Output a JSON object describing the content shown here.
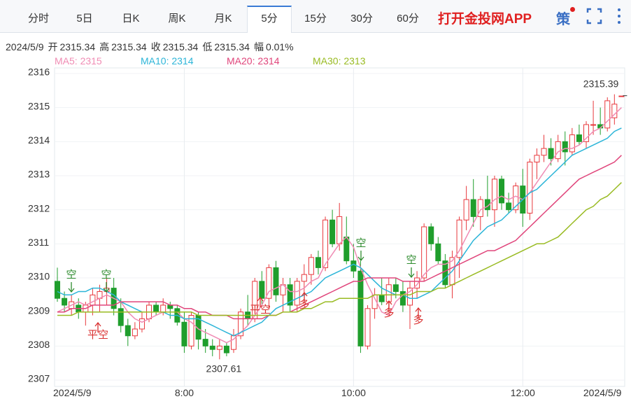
{
  "tabs": {
    "items": [
      "分时",
      "5日",
      "日K",
      "周K",
      "月K",
      "5分",
      "15分",
      "30分",
      "60分"
    ],
    "active": 5,
    "promo": "打开金投网APP",
    "strategy": "策"
  },
  "info": {
    "date": "2024/5/9",
    "items": [
      {
        "label": "开",
        "value": 2315.34
      },
      {
        "label": "高",
        "value": 2315.34
      },
      {
        "label": "收",
        "value": 2315.34
      },
      {
        "label": "低",
        "value": 2315.34
      },
      {
        "label": "幅",
        "value": 0.01,
        "value_label": "0.01%"
      }
    ]
  },
  "chart_data": {
    "type": "candlestick",
    "categories": [
      "2024/5/9",
      null,
      null,
      null,
      null,
      null,
      null,
      null,
      null,
      null,
      null,
      null,
      null,
      null,
      null,
      null,
      null,
      null,
      "8:00",
      null,
      null,
      null,
      null,
      null,
      null,
      null,
      null,
      null,
      null,
      null,
      null,
      null,
      null,
      null,
      null,
      null,
      null,
      null,
      null,
      null,
      null,
      null,
      "10:00",
      null,
      null,
      null,
      null,
      null,
      null,
      null,
      null,
      null,
      null,
      null,
      null,
      null,
      null,
      null,
      null,
      null,
      null,
      null,
      null,
      null,
      null,
      null,
      "12:00",
      null,
      null,
      null,
      null,
      null,
      null,
      null,
      null,
      null,
      null,
      null,
      null,
      null,
      "2024/5/9"
    ],
    "open": [
      2309.9,
      2309.4,
      2309.1,
      2309.2,
      2309.0,
      2309.2,
      2309.4,
      2309.6,
      2309.7,
      2309.1,
      2308.6,
      2308.3,
      2308.5,
      2308.8,
      2309.2,
      2309.0,
      2309.2,
      2309.1,
      2308.7,
      2308.0,
      2308.9,
      2308.2,
      2308.0,
      2307.9,
      2308.0,
      2307.9,
      2308.3,
      2309.0,
      2308.8,
      2309.9,
      2309.4,
      2310.3,
      2309.5,
      2309.8,
      2309.2,
      2309.9,
      2310.1,
      2310.6,
      2310.3,
      2311.7,
      2311.0,
      2311.2,
      2310.5,
      2310.2,
      2308.0,
      2309.1,
      2309.5,
      2309.3,
      2309.8,
      2309.6,
      2309.2,
      2309.7,
      2310.0,
      2311.5,
      2311.0,
      2310.5,
      2309.8,
      2310.6,
      2311.7,
      2312.3,
      2311.8,
      2312.3,
      2312.0,
      2312.9,
      2312.2,
      2312.0,
      2312.7,
      2311.9,
      2313.4,
      2313.6,
      2313.8,
      2313.5,
      2314.0,
      2313.7,
      2314.2,
      2314.0,
      2314.5,
      2314.5,
      2314.4,
      2314.7,
      2315.34
    ],
    "high": [
      2310.3,
      2309.6,
      2309.5,
      2309.4,
      2309.3,
      2309.7,
      2309.8,
      2310.0,
      2310.0,
      2309.4,
      2308.8,
      2308.7,
      2309.0,
      2309.3,
      2309.3,
      2309.4,
      2309.3,
      2309.2,
      2309.0,
      2309.0,
      2309.0,
      2308.5,
      2308.2,
      2308.2,
      2308.1,
      2308.5,
      2309.1,
      2309.5,
      2310.0,
      2310.2,
      2310.4,
      2310.5,
      2310.0,
      2310.0,
      2310.0,
      2310.4,
      2310.7,
      2310.8,
      2311.8,
      2312.0,
      2312.2,
      2311.8,
      2311.0,
      2310.5,
      2309.2,
      2309.7,
      2310.0,
      2310.0,
      2310.0,
      2309.9,
      2309.9,
      2310.2,
      2311.6,
      2311.6,
      2311.2,
      2310.7,
      2310.8,
      2311.8,
      2312.7,
      2312.9,
      2312.4,
      2313.0,
      2313.0,
      2313.0,
      2312.5,
      2312.8,
      2313.2,
      2313.5,
      2313.8,
      2314.2,
      2314.1,
      2314.2,
      2314.3,
      2314.4,
      2314.5,
      2314.6,
      2315.2,
      2315.0,
      2315.3,
      2315.39,
      2315.34
    ],
    "low": [
      2309.3,
      2309.0,
      2308.9,
      2308.8,
      2308.6,
      2308.9,
      2309.0,
      2309.2,
      2308.9,
      2308.4,
      2308.0,
      2308.2,
      2308.4,
      2308.7,
      2308.9,
      2308.9,
      2308.8,
      2308.6,
      2307.8,
      2307.9,
      2307.9,
      2307.8,
      2307.7,
      2307.61,
      2307.7,
      2307.8,
      2308.2,
      2308.6,
      2308.7,
      2309.2,
      2309.1,
      2309.3,
      2309.0,
      2309.0,
      2309.0,
      2309.5,
      2309.8,
      2310.1,
      2310.2,
      2310.9,
      2310.8,
      2310.4,
      2310.0,
      2307.8,
      2307.9,
      2308.8,
      2309.2,
      2309.0,
      2309.4,
      2309.0,
      2308.5,
      2309.4,
      2309.9,
      2310.8,
      2310.4,
      2309.7,
      2309.4,
      2310.0,
      2311.4,
      2311.5,
      2311.4,
      2311.8,
      2311.5,
      2312.0,
      2311.9,
      2311.9,
      2311.5,
      2311.7,
      2312.9,
      2313.4,
      2313.3,
      2313.4,
      2313.3,
      2313.6,
      2313.9,
      2313.8,
      2314.2,
      2314.2,
      2314.3,
      2314.5,
      2315.34
    ],
    "close": [
      2309.4,
      2309.2,
      2309.3,
      2309.0,
      2309.2,
      2309.5,
      2309.6,
      2309.7,
      2309.1,
      2308.6,
      2308.3,
      2308.5,
      2308.8,
      2309.2,
      2309.0,
      2309.2,
      2309.1,
      2308.7,
      2308.0,
      2308.9,
      2308.2,
      2308.0,
      2307.9,
      2308.0,
      2307.8,
      2308.3,
      2309.0,
      2308.8,
      2309.9,
      2309.4,
      2310.3,
      2309.5,
      2309.8,
      2309.2,
      2309.9,
      2310.1,
      2310.6,
      2310.3,
      2311.7,
      2311.0,
      2311.8,
      2310.5,
      2310.2,
      2308.0,
      2309.1,
      2309.5,
      2309.3,
      2309.8,
      2309.6,
      2309.2,
      2309.7,
      2310.0,
      2311.5,
      2311.0,
      2310.5,
      2309.8,
      2310.6,
      2311.7,
      2312.3,
      2311.8,
      2312.3,
      2312.0,
      2312.9,
      2312.2,
      2312.0,
      2312.7,
      2311.9,
      2313.4,
      2313.6,
      2313.8,
      2313.5,
      2314.0,
      2313.7,
      2314.2,
      2314.0,
      2314.5,
      2314.5,
      2314.4,
      2315.2,
      2315.1,
      2315.34
    ],
    "up_color": "#e8383d",
    "down_color": "#1f9e2c",
    "series": [
      {
        "name": "MA5: 2315",
        "color": "#f08cb4",
        "values": [
          2309.0,
          2309.1,
          2309.2,
          2309.3,
          2309.2,
          2309.3,
          2309.4,
          2309.5,
          2309.4,
          2309.3,
          2309.0,
          2308.8,
          2308.7,
          2308.8,
          2308.9,
          2309.0,
          2309.0,
          2309.0,
          2308.8,
          2308.7,
          2308.5,
          2308.4,
          2308.3,
          2308.2,
          2308.1,
          2308.2,
          2308.4,
          2308.6,
          2308.9,
          2309.2,
          2309.6,
          2309.7,
          2309.8,
          2309.6,
          2309.6,
          2309.7,
          2309.9,
          2310.0,
          2310.4,
          2310.7,
          2311.0,
          2311.2,
          2310.9,
          2310.3,
          2309.8,
          2309.4,
          2309.0,
          2308.9,
          2309.3,
          2309.5,
          2309.6,
          2309.8,
          2310.1,
          2310.3,
          2310.4,
          2310.4,
          2310.5,
          2310.8,
          2311.2,
          2311.6,
          2312.0,
          2312.1,
          2312.3,
          2312.4,
          2312.3,
          2312.4,
          2312.3,
          2312.5,
          2312.8,
          2313.1,
          2313.4,
          2313.7,
          2313.8,
          2313.8,
          2313.9,
          2314.1,
          2314.3,
          2314.4,
          2314.6,
          2314.8,
          2315.0
        ]
      },
      {
        "name": "MA10: 2314",
        "color": "#2cb5d8",
        "values": [
          2309.6,
          2309.5,
          2309.5,
          2309.6,
          2309.6,
          2309.7,
          2309.7,
          2309.6,
          2309.5,
          2309.3,
          2309.2,
          2309.1,
          2309.0,
          2309.0,
          2309.0,
          2309.0,
          2308.9,
          2308.9,
          2308.8,
          2308.8,
          2308.8,
          2308.7,
          2308.6,
          2308.5,
          2308.4,
          2308.3,
          2308.4,
          2308.5,
          2308.6,
          2308.7,
          2308.9,
          2309.1,
          2309.2,
          2309.3,
          2309.4,
          2309.5,
          2309.6,
          2309.8,
          2310.0,
          2310.1,
          2310.2,
          2310.3,
          2310.4,
          2310.3,
          2310.1,
          2309.9,
          2309.7,
          2309.6,
          2309.5,
          2309.5,
          2309.4,
          2309.4,
          2309.5,
          2309.6,
          2309.8,
          2310.0,
          2310.2,
          2310.5,
          2310.8,
          2311.1,
          2311.3,
          2311.5,
          2311.6,
          2311.7,
          2311.9,
          2312.1,
          2312.3,
          2312.5,
          2312.6,
          2312.8,
          2313.0,
          2313.2,
          2313.4,
          2313.6,
          2313.7,
          2313.8,
          2313.9,
          2314.0,
          2314.1,
          2314.3,
          2314.4
        ]
      },
      {
        "name": "MA20: 2314",
        "color": "#e0457b",
        "values": [
          2309.0,
          2309.0,
          2309.1,
          2309.1,
          2309.1,
          2309.2,
          2309.2,
          2309.2,
          2309.2,
          2309.3,
          2309.3,
          2309.3,
          2309.3,
          2309.3,
          2309.3,
          2309.3,
          2309.2,
          2309.2,
          2309.1,
          2309.1,
          2309.0,
          2309.0,
          2308.9,
          2308.9,
          2308.9,
          2308.8,
          2308.8,
          2308.8,
          2308.8,
          2308.8,
          2308.9,
          2308.9,
          2309.0,
          2309.0,
          2309.1,
          2309.2,
          2309.3,
          2309.4,
          2309.5,
          2309.6,
          2309.7,
          2309.8,
          2309.9,
          2309.9,
          2310.0,
          2310.0,
          2310.0,
          2310.0,
          2310.0,
          2309.9,
          2309.9,
          2309.9,
          2309.9,
          2310.0,
          2310.1,
          2310.2,
          2310.3,
          2310.4,
          2310.5,
          2310.6,
          2310.7,
          2310.8,
          2310.8,
          2310.9,
          2311.0,
          2311.1,
          2311.3,
          2311.5,
          2311.7,
          2311.9,
          2312.1,
          2312.3,
          2312.5,
          2312.7,
          2312.9,
          2313.0,
          2313.1,
          2313.2,
          2313.3,
          2313.4,
          2313.6
        ]
      },
      {
        "name": "MA30: 2313",
        "color": "#99bb22",
        "values": [
          2308.9,
          2308.9,
          2308.9,
          2309.0,
          2309.0,
          2309.0,
          2309.0,
          2309.0,
          2309.0,
          2309.0,
          2309.0,
          2309.0,
          2309.0,
          2309.0,
          2309.0,
          2309.0,
          2309.0,
          2309.0,
          2309.0,
          2309.0,
          2308.9,
          2308.9,
          2308.9,
          2308.9,
          2308.9,
          2308.9,
          2308.9,
          2308.9,
          2308.9,
          2308.9,
          2308.9,
          2308.9,
          2309.0,
          2309.0,
          2309.0,
          2309.1,
          2309.1,
          2309.2,
          2309.3,
          2309.3,
          2309.4,
          2309.4,
          2309.4,
          2309.4,
          2309.4,
          2309.5,
          2309.5,
          2309.5,
          2309.5,
          2309.5,
          2309.5,
          2309.6,
          2309.6,
          2309.6,
          2309.7,
          2309.7,
          2309.8,
          2309.9,
          2310.0,
          2310.1,
          2310.2,
          2310.3,
          2310.4,
          2310.5,
          2310.6,
          2310.7,
          2310.8,
          2310.9,
          2311.0,
          2311.0,
          2311.1,
          2311.2,
          2311.4,
          2311.6,
          2311.8,
          2312.0,
          2312.1,
          2312.3,
          2312.4,
          2312.6,
          2312.8
        ]
      }
    ],
    "ylim": [
      2307,
      2316
    ],
    "yticks": [
      2307,
      2308,
      2309,
      2310,
      2311,
      2312,
      2313,
      2314,
      2315,
      2316
    ],
    "grid": true,
    "high_label": 2315.39,
    "low_label": 2307.61,
    "annotations": [
      {
        "text": "空",
        "color": "#2e8b2e"
      },
      {
        "text": "空",
        "color": "#2e8b2e"
      },
      {
        "text": "平空",
        "color": "#d93030"
      },
      {
        "text": "平空",
        "color": "#d93030"
      },
      {
        "text": "多",
        "color": "#d93030"
      },
      {
        "text": "空",
        "color": "#2e8b2e"
      },
      {
        "text": "多",
        "color": "#d93030"
      },
      {
        "text": "空",
        "color": "#2e8b2e"
      },
      {
        "text": "多",
        "color": "#d93030"
      }
    ]
  }
}
